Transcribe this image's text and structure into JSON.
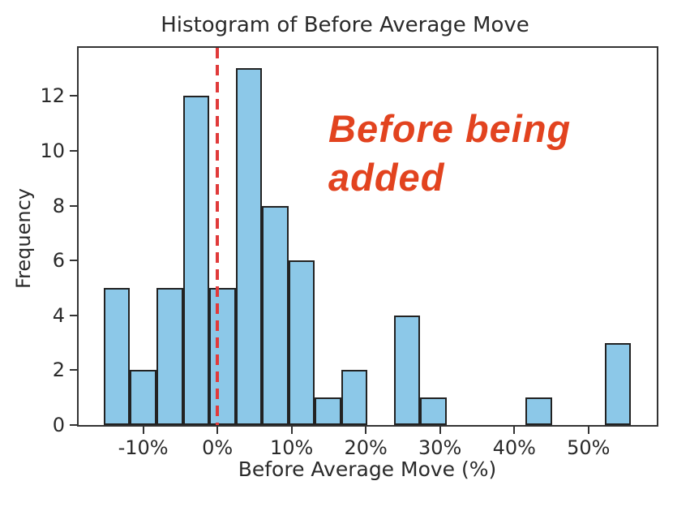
{
  "chart_data": {
    "type": "bar",
    "subtype": "histogram",
    "title": "Histogram of Before Average Move",
    "xlabel": "Before Average Move (%)",
    "ylabel": "Frequency",
    "bin_edges_percent": [
      -15.3,
      -11.8,
      -8.2,
      -4.6,
      -1.1,
      2.5,
      6.0,
      9.6,
      13.1,
      16.7,
      20.2,
      23.8,
      27.3,
      30.9,
      34.4,
      38.0,
      41.5,
      45.1,
      48.6,
      52.2,
      55.7
    ],
    "counts": [
      5,
      2,
      5,
      12,
      5,
      13,
      8,
      6,
      1,
      2,
      0,
      4,
      1,
      0,
      0,
      0,
      1,
      0,
      0,
      3
    ],
    "xlim": [
      -18.7,
      59.2
    ],
    "ylim": [
      0,
      13.75
    ],
    "xticks": {
      "values": [
        -10,
        0,
        10,
        20,
        30,
        40,
        50
      ],
      "labels": [
        "-10%",
        "0%",
        "10%",
        "20%",
        "30%",
        "40%",
        "50%"
      ]
    },
    "yticks": {
      "values": [
        0,
        2,
        4,
        6,
        8,
        10,
        12
      ],
      "labels": [
        "0",
        "2",
        "4",
        "6",
        "8",
        "10",
        "12"
      ]
    },
    "grid": false,
    "legend": false,
    "reference_line": {
      "x_percent": 0,
      "style": "dashed",
      "color": "#e03a3a"
    },
    "annotation": {
      "text": "Before being added",
      "line1": "Before being",
      "line2": "added",
      "color": "#e2431f"
    },
    "colors": {
      "bar_fill": "#8cc8e8",
      "bar_edge": "#222222",
      "axis": "#333333",
      "text": "#2a2a2a"
    }
  }
}
